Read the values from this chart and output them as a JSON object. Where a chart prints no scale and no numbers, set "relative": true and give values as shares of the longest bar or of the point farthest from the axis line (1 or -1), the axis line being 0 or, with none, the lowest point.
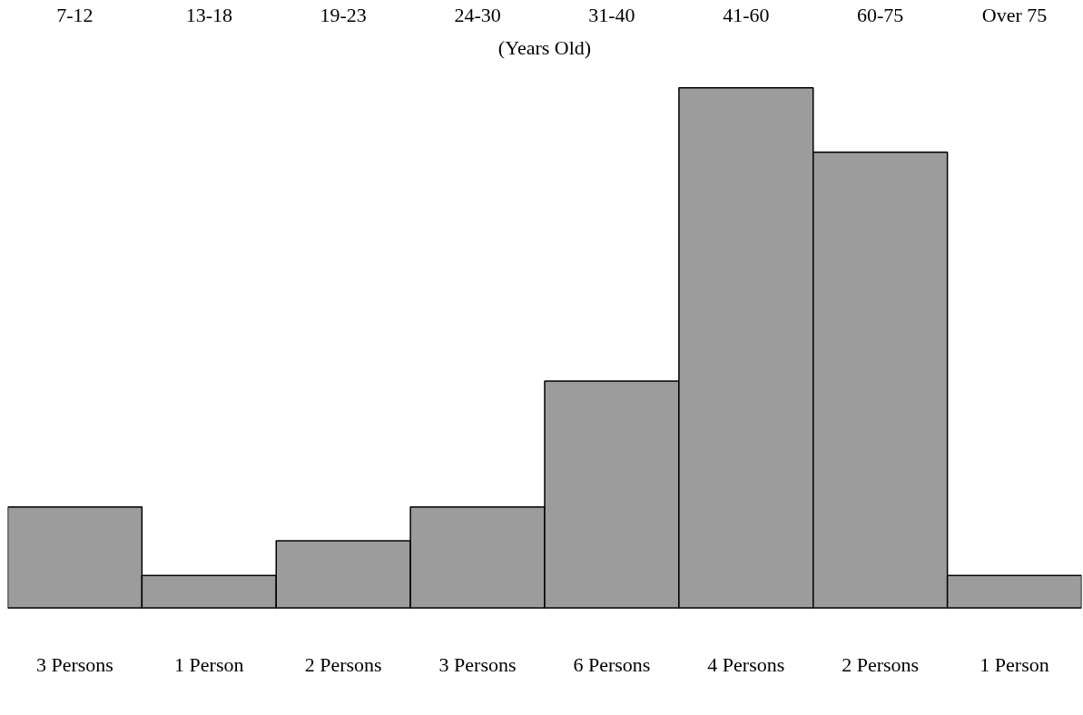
{
  "chart_data": {
    "type": "bar",
    "relative": true,
    "xlabel": "(Years Old)",
    "categories": [
      "7-12",
      "13-18",
      "19-23",
      "24-30",
      "31-40",
      "41-60",
      "60-75",
      "Over 75"
    ],
    "values": [
      0.194,
      0.062,
      0.129,
      0.194,
      0.436,
      1,
      0.876,
      0.062
    ],
    "annotations": [
      "3 Persons",
      "1 Person",
      "2 Persons",
      "3 Persons",
      "6 Persons",
      "4 Persons",
      "2 Persons",
      "1 Person"
    ],
    "color": "#9c9c9c"
  }
}
